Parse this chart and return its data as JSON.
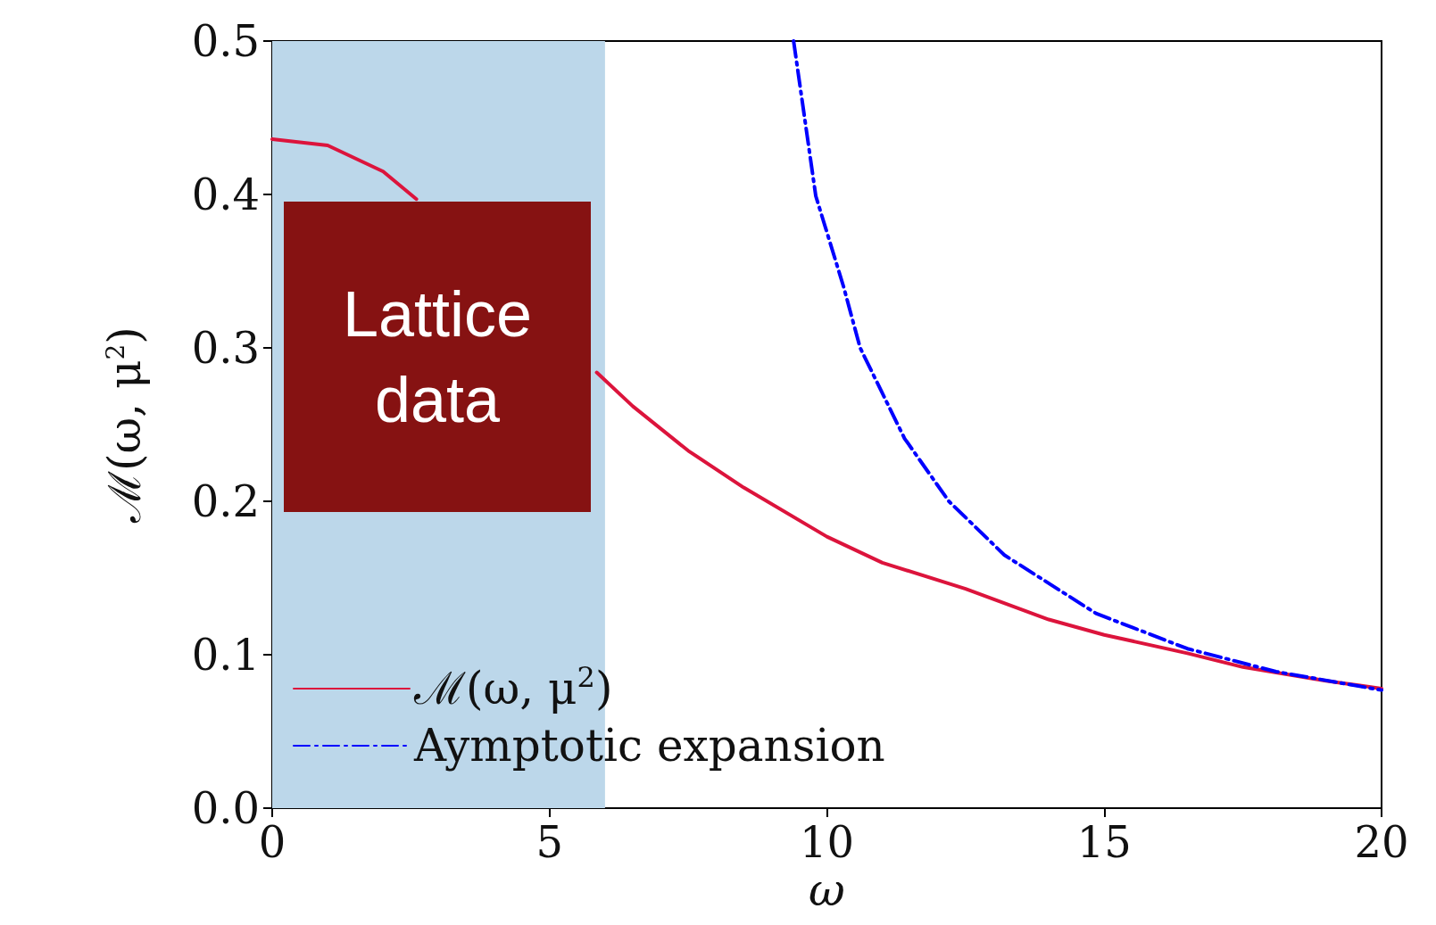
{
  "chart_data": {
    "type": "line",
    "xlabel": "ω",
    "ylabel": "ℳ(ω, μ$^{2}$)",
    "xlim": [
      0,
      20
    ],
    "ylim": [
      0,
      0.5
    ],
    "xticks": [
      0,
      5,
      10,
      15,
      20
    ],
    "yticks": [
      {
        "value": 0,
        "label": "0.0"
      },
      0.1,
      0.2,
      0.3,
      0.4,
      0.5
    ],
    "grid": false,
    "legend": "bottom left",
    "marker": "none",
    "series": [
      {
        "name": "ℳ(ω, μ$^{2}$)",
        "color": "#dc143c",
        "line_style": "solid",
        "x": [
          0,
          1,
          2,
          2.6,
          3,
          4,
          5,
          5.85,
          6.5,
          7.5,
          8.5,
          10,
          11,
          12.5,
          14,
          15,
          16.5,
          17.5,
          19,
          20
        ],
        "values": [
          0.436,
          0.432,
          0.415,
          0.397,
          null,
          null,
          null,
          0.284,
          0.262,
          0.233,
          0.209,
          0.177,
          0.16,
          0.143,
          0.123,
          0.113,
          0.101,
          0.092,
          0.083,
          0.078
        ]
      },
      {
        "name": "Aymptotic expansion",
        "color": "#0000ff",
        "line_style": "dashdot",
        "x": [
          9.4,
          9.8,
          10.3,
          10.6,
          11.4,
          12.2,
          13.2,
          14.85,
          16.5,
          18.1,
          20
        ],
        "values": [
          0.5,
          0.399,
          0.34,
          0.3,
          0.241,
          0.2,
          0.165,
          0.127,
          0.104,
          0.089,
          0.077
        ]
      }
    ],
    "bands": [
      {
        "axis": "x",
        "from": 0,
        "to": 6,
        "color": "#bcd7ea"
      }
    ],
    "annotations": [
      "Lattice data"
    ]
  }
}
